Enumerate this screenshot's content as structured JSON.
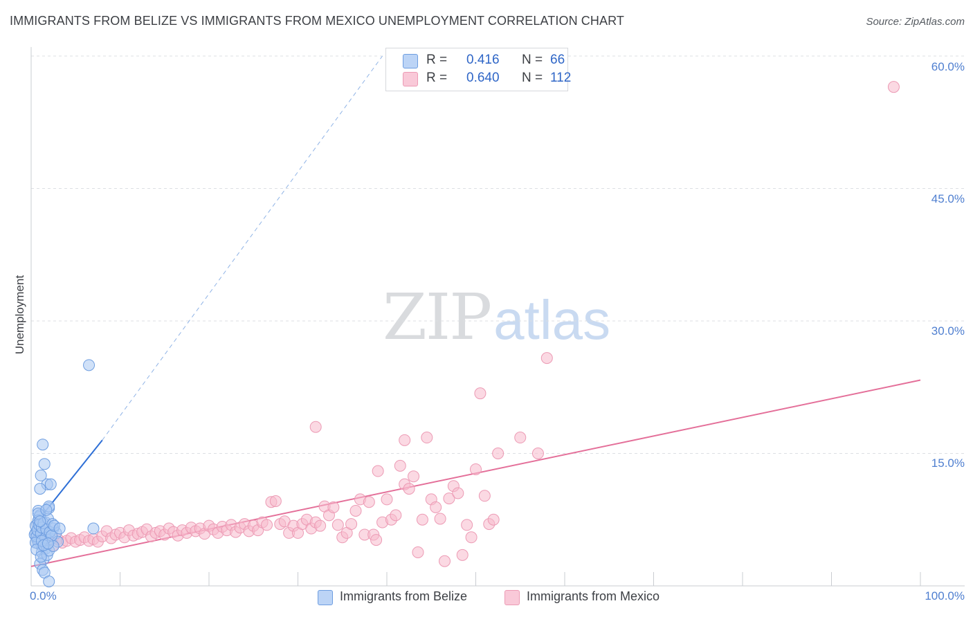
{
  "header": {
    "title": "IMMIGRANTS FROM BELIZE VS IMMIGRANTS FROM MEXICO UNEMPLOYMENT CORRELATION CHART",
    "source": "Source: ZipAtlas.com"
  },
  "watermark": {
    "zip": "ZIP",
    "atlas": "atlas"
  },
  "legend": {
    "series1": {
      "r_label": "R =",
      "r_value": "0.416",
      "n_label": "N =",
      "n_value": "66"
    },
    "series2": {
      "r_label": "R =",
      "r_value": "0.640",
      "n_label": "N =",
      "n_value": "112"
    }
  },
  "bottom_legend": {
    "series1": "Immigrants from Belize",
    "series2": "Immigrants from Mexico"
  },
  "axes": {
    "ylabel": "Unemployment",
    "yticks": [
      "60.0%",
      "45.0%",
      "30.0%",
      "15.0%"
    ],
    "xtick_left": "0.0%",
    "xtick_right": "100.0%"
  },
  "colors": {
    "belize_fill": "#a9c8f3",
    "belize_stroke": "#6d9de0",
    "belize_line": "#2e6fd6",
    "mexico_fill": "#f7b9cc",
    "mexico_stroke": "#ec9ab4",
    "mexico_line": "#e46f99",
    "grid": "#dcdfe3",
    "tick_text": "#4f7fd0"
  },
  "chart_data": {
    "type": "scatter",
    "title": "IMMIGRANTS FROM BELIZE VS IMMIGRANTS FROM MEXICO UNEMPLOYMENT CORRELATION CHART",
    "xlabel": "",
    "ylabel": "Unemployment",
    "xlim": [
      0,
      100
    ],
    "ylim": [
      0,
      60
    ],
    "y_gridlines": [
      15,
      30,
      45,
      60
    ],
    "series": [
      {
        "name": "Immigrants from Belize",
        "R": 0.416,
        "N": 66,
        "trendline": {
          "x": [
            0.3,
            8.0
          ],
          "y": [
            6.8,
            16.5
          ]
        },
        "trendline_extension": {
          "x": [
            8.0,
            39.5
          ],
          "y": [
            16.5,
            60.0
          ]
        },
        "points": [
          [
            0.5,
            6.0
          ],
          [
            0.6,
            5.5
          ],
          [
            0.7,
            7.0
          ],
          [
            0.8,
            8.5
          ],
          [
            0.9,
            5.0
          ],
          [
            1.0,
            6.5
          ],
          [
            1.1,
            7.5
          ],
          [
            1.2,
            4.5
          ],
          [
            0.4,
            5.8
          ],
          [
            0.5,
            6.8
          ],
          [
            0.7,
            5.2
          ],
          [
            0.8,
            4.8
          ],
          [
            0.9,
            7.8
          ],
          [
            1.0,
            8.0
          ],
          [
            1.3,
            6.2
          ],
          [
            1.5,
            5.5
          ],
          [
            1.6,
            7.2
          ],
          [
            1.8,
            6.0
          ],
          [
            2.0,
            8.8
          ],
          [
            2.2,
            5.3
          ],
          [
            2.5,
            6.5
          ],
          [
            1.2,
            3.8
          ],
          [
            1.4,
            3.0
          ],
          [
            1.6,
            4.2
          ],
          [
            1.8,
            3.5
          ],
          [
            2.0,
            4.0
          ],
          [
            1.0,
            2.5
          ],
          [
            1.3,
            1.8
          ],
          [
            1.5,
            1.5
          ],
          [
            2.0,
            0.5
          ],
          [
            1.8,
            11.5
          ],
          [
            2.2,
            11.5
          ],
          [
            1.0,
            11.0
          ],
          [
            1.1,
            12.5
          ],
          [
            1.3,
            16.0
          ],
          [
            1.5,
            13.8
          ],
          [
            2.0,
            9.0
          ],
          [
            2.8,
            6.0
          ],
          [
            3.0,
            5.0
          ],
          [
            2.5,
            4.5
          ],
          [
            0.6,
            5.6
          ],
          [
            0.7,
            6.3
          ],
          [
            0.8,
            7.4
          ],
          [
            0.9,
            6.9
          ],
          [
            1.1,
            5.9
          ],
          [
            1.2,
            6.6
          ],
          [
            1.4,
            7.1
          ],
          [
            1.6,
            5.4
          ],
          [
            1.7,
            6.4
          ],
          [
            1.9,
            7.6
          ],
          [
            2.1,
            6.1
          ],
          [
            2.3,
            5.7
          ],
          [
            0.5,
            4.9
          ],
          [
            0.6,
            4.1
          ],
          [
            0.8,
            8.2
          ],
          [
            1.0,
            7.3
          ],
          [
            1.2,
            5.1
          ],
          [
            1.4,
            4.6
          ],
          [
            1.7,
            8.6
          ],
          [
            2.4,
            7.0
          ],
          [
            2.6,
            6.8
          ],
          [
            3.2,
            6.5
          ],
          [
            7.0,
            6.5
          ],
          [
            6.5,
            25.0
          ],
          [
            1.1,
            3.3
          ],
          [
            1.9,
            4.8
          ]
        ]
      },
      {
        "name": "Immigrants from Mexico",
        "R": 0.64,
        "N": 112,
        "trendline": {
          "x": [
            0.0,
            100.0
          ],
          "y": [
            2.2,
            23.3
          ]
        },
        "points": [
          [
            0.8,
            5.2
          ],
          [
            1.2,
            4.8
          ],
          [
            1.5,
            5.5
          ],
          [
            2.0,
            5.0
          ],
          [
            2.5,
            4.6
          ],
          [
            3.0,
            5.3
          ],
          [
            3.5,
            4.9
          ],
          [
            4.0,
            5.1
          ],
          [
            4.5,
            5.4
          ],
          [
            5.0,
            5.0
          ],
          [
            5.5,
            5.2
          ],
          [
            6.0,
            5.5
          ],
          [
            6.5,
            5.1
          ],
          [
            7.0,
            5.3
          ],
          [
            7.5,
            5.0
          ],
          [
            8.0,
            5.6
          ],
          [
            8.5,
            6.2
          ],
          [
            9.0,
            5.4
          ],
          [
            9.5,
            5.8
          ],
          [
            10.0,
            6.0
          ],
          [
            10.5,
            5.5
          ],
          [
            11.0,
            6.3
          ],
          [
            11.5,
            5.7
          ],
          [
            12.0,
            5.9
          ],
          [
            12.5,
            6.1
          ],
          [
            13.0,
            6.4
          ],
          [
            13.5,
            5.6
          ],
          [
            14.0,
            6.0
          ],
          [
            14.5,
            6.2
          ],
          [
            15.0,
            5.8
          ],
          [
            15.5,
            6.5
          ],
          [
            16.0,
            6.1
          ],
          [
            16.5,
            5.7
          ],
          [
            17.0,
            6.3
          ],
          [
            17.5,
            6.0
          ],
          [
            18.0,
            6.6
          ],
          [
            18.5,
            6.2
          ],
          [
            19.0,
            6.5
          ],
          [
            19.5,
            5.9
          ],
          [
            20.0,
            6.8
          ],
          [
            20.5,
            6.4
          ],
          [
            21.0,
            6.0
          ],
          [
            21.5,
            6.7
          ],
          [
            22.0,
            6.3
          ],
          [
            22.5,
            6.9
          ],
          [
            23.0,
            6.1
          ],
          [
            23.5,
            6.6
          ],
          [
            24.0,
            7.0
          ],
          [
            24.5,
            6.2
          ],
          [
            25.0,
            6.8
          ],
          [
            25.5,
            6.3
          ],
          [
            26.0,
            7.2
          ],
          [
            26.5,
            6.9
          ],
          [
            27.0,
            9.5
          ],
          [
            27.5,
            9.6
          ],
          [
            28.0,
            7.0
          ],
          [
            28.5,
            7.3
          ],
          [
            29.0,
            6.0
          ],
          [
            29.5,
            6.8
          ],
          [
            30.0,
            6.0
          ],
          [
            30.5,
            7.0
          ],
          [
            31.0,
            7.5
          ],
          [
            31.5,
            6.5
          ],
          [
            32.0,
            7.2
          ],
          [
            32.5,
            6.8
          ],
          [
            33.0,
            9.0
          ],
          [
            33.5,
            8.0
          ],
          [
            34.0,
            8.9
          ],
          [
            34.5,
            6.9
          ],
          [
            35.0,
            5.5
          ],
          [
            35.5,
            6.0
          ],
          [
            36.0,
            7.0
          ],
          [
            36.5,
            8.5
          ],
          [
            37.0,
            9.8
          ],
          [
            37.5,
            5.8
          ],
          [
            38.0,
            9.5
          ],
          [
            38.5,
            5.8
          ],
          [
            38.8,
            5.2
          ],
          [
            39.0,
            13.0
          ],
          [
            39.5,
            7.2
          ],
          [
            40.0,
            9.8
          ],
          [
            40.5,
            7.5
          ],
          [
            41.0,
            8.0
          ],
          [
            41.5,
            13.6
          ],
          [
            42.0,
            11.5
          ],
          [
            42.5,
            11.0
          ],
          [
            43.0,
            12.4
          ],
          [
            43.5,
            3.8
          ],
          [
            44.0,
            7.5
          ],
          [
            44.5,
            16.8
          ],
          [
            45.0,
            9.8
          ],
          [
            45.5,
            8.9
          ],
          [
            46.0,
            7.6
          ],
          [
            46.5,
            2.8
          ],
          [
            47.0,
            9.9
          ],
          [
            47.5,
            11.3
          ],
          [
            48.0,
            10.5
          ],
          [
            48.5,
            3.5
          ],
          [
            49.0,
            6.9
          ],
          [
            49.5,
            5.5
          ],
          [
            50.0,
            13.2
          ],
          [
            51.0,
            10.2
          ],
          [
            51.5,
            7.0
          ],
          [
            52.0,
            7.5
          ],
          [
            52.5,
            15.0
          ],
          [
            55.0,
            16.8
          ],
          [
            57.0,
            15.0
          ],
          [
            58.0,
            25.8
          ],
          [
            50.5,
            21.8
          ],
          [
            32.0,
            18.0
          ],
          [
            42.0,
            16.5
          ],
          [
            97.0,
            56.5
          ]
        ]
      }
    ]
  }
}
